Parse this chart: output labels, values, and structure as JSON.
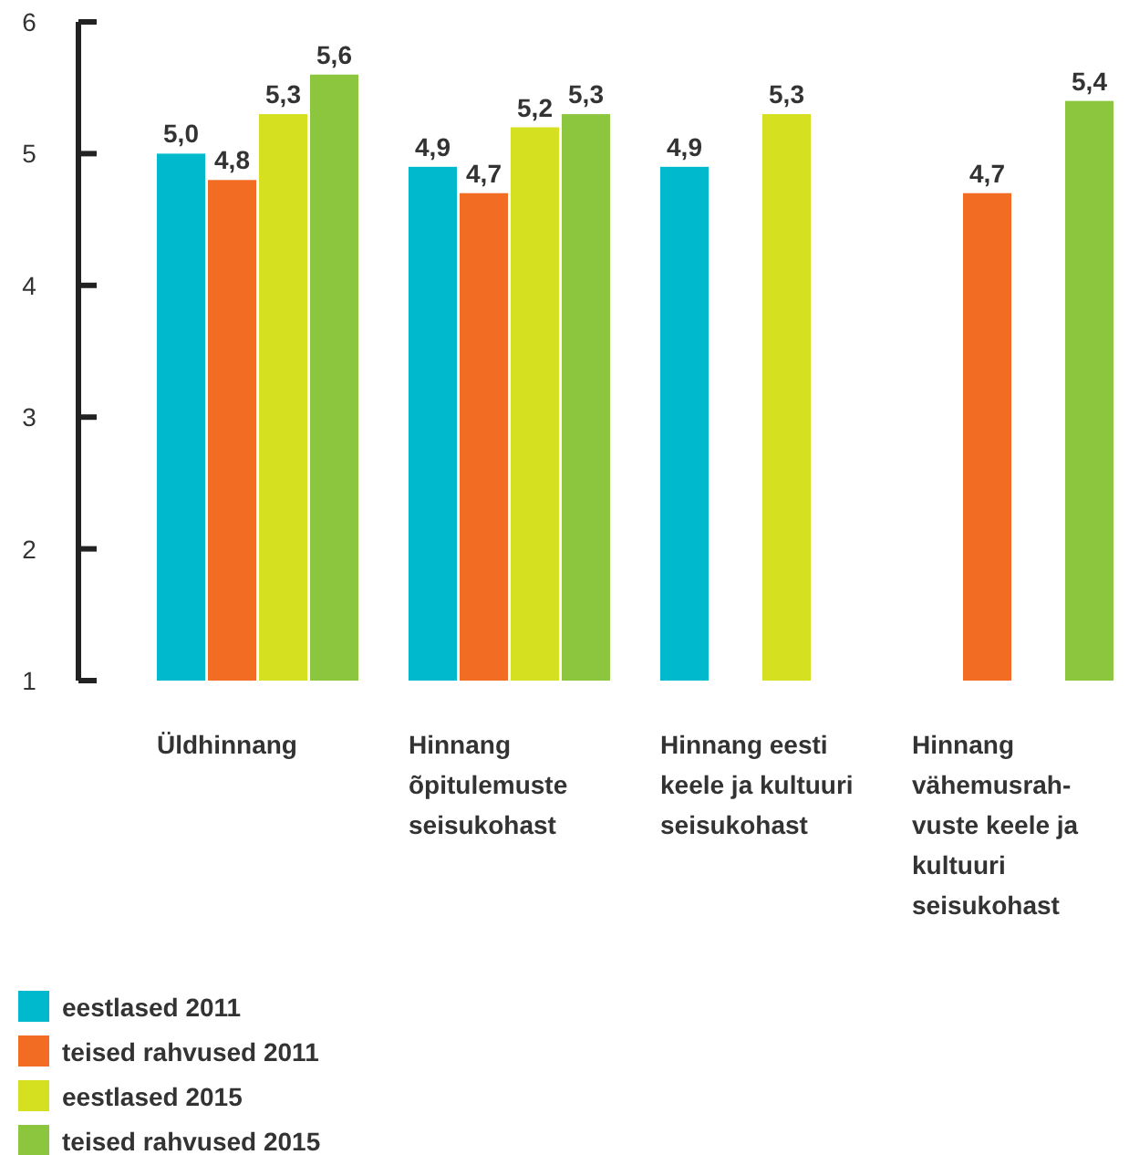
{
  "chart_data": {
    "type": "bar",
    "categories": [
      "Üldhinnang",
      "Hinnang\nõpitulemuste\nseisukohast",
      "Hinnang eesti\nkeele ja kultuuri\nseisukohast",
      "Hinnang\nvähemusrah-\nvuste keele ja\nkultuuri\nseisukohast"
    ],
    "series": [
      {
        "name": "eestlased 2011",
        "color": "#00b9cc",
        "values": [
          5.0,
          4.9,
          4.9,
          null
        ],
        "value_labels": [
          "5,0",
          "4,9",
          "4,9",
          null
        ]
      },
      {
        "name": "teised rahvused 2011",
        "color": "#f26c23",
        "values": [
          4.8,
          4.7,
          null,
          4.7
        ],
        "value_labels": [
          "4,8",
          "4,7",
          null,
          "4,7"
        ]
      },
      {
        "name": "eestlased 2015",
        "color": "#d5e021",
        "values": [
          5.3,
          5.2,
          5.3,
          null
        ],
        "value_labels": [
          "5,3",
          "5,2",
          "5,3",
          null
        ]
      },
      {
        "name": "teised rahvused 2015",
        "color": "#8cc63f",
        "values": [
          5.6,
          5.3,
          null,
          5.4
        ],
        "value_labels": [
          "5,6",
          "5,3",
          null,
          "5,4"
        ]
      }
    ],
    "ylim": [
      1,
      6
    ],
    "yticks": [
      1,
      2,
      3,
      4,
      5,
      6
    ],
    "grid": false,
    "legend": "bottom left"
  }
}
